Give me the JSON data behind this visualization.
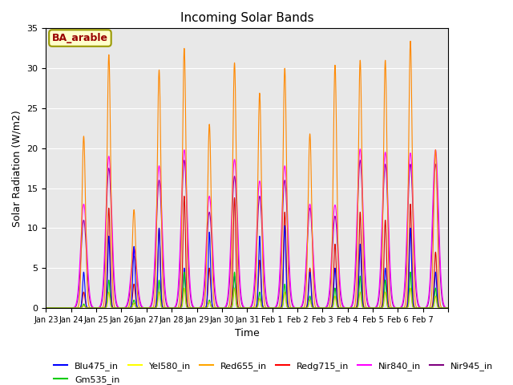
{
  "title": "Incoming Solar Bands",
  "xlabel": "Time",
  "ylabel": "Solar Radiation (W/m2)",
  "annotation": "BA_arable",
  "ylim": [
    0,
    35
  ],
  "bg_color": "#e8e8e8",
  "annotation_bg": "#ffffcc",
  "annotation_fg": "#990000",
  "annotation_edge": "#999900",
  "n_days": 16,
  "tick_labels": [
    "Jan 23",
    "Jan 24",
    "Jan 25",
    "Jan 26",
    "Jan 27",
    "Jan 28",
    "Jan 29",
    "Jan 30",
    "Jan 31",
    "Feb 1",
    "Feb 2",
    "Feb 3",
    "Feb 4",
    "Feb 5",
    "Feb 6",
    "Feb 7"
  ],
  "colors": {
    "Blu475_in": "#0000FF",
    "Gm535_in": "#00CC00",
    "Yel580_in": "#CCCC00",
    "Red655_in": "#FF8800",
    "Redg715_in": "#DD0000",
    "Nir840_in": "#FF00FF",
    "Nir945_in": "#9900AA"
  },
  "orange_peaks": [
    0.0,
    21.5,
    31.7,
    12.3,
    29.8,
    32.5,
    23.0,
    30.7,
    26.9,
    30.0,
    21.8,
    30.4,
    31.0,
    31.0,
    33.4,
    19.8
  ],
  "magenta_peaks": [
    0.0,
    13.0,
    19.0,
    7.5,
    17.8,
    19.8,
    14.0,
    18.6,
    15.9,
    17.8,
    13.0,
    12.9,
    19.9,
    19.5,
    19.4,
    19.8
  ],
  "purple_peaks": [
    0.0,
    11.0,
    17.5,
    6.5,
    16.0,
    18.5,
    12.0,
    16.5,
    14.0,
    16.0,
    12.5,
    11.5,
    18.5,
    18.0,
    18.0,
    18.0
  ],
  "blue_peaks": [
    0.0,
    4.5,
    9.0,
    7.7,
    10.0,
    5.0,
    9.5,
    4.0,
    9.0,
    10.3,
    4.5,
    5.0,
    8.0,
    5.0,
    10.0,
    4.5
  ],
  "red_peaks": [
    0.0,
    2.0,
    12.5,
    3.0,
    10.0,
    14.0,
    5.0,
    13.8,
    6.0,
    12.0,
    5.0,
    8.0,
    12.0,
    11.0,
    13.0,
    7.0
  ],
  "green_peaks": [
    0.0,
    0.5,
    3.5,
    1.0,
    3.5,
    4.5,
    1.0,
    4.5,
    2.0,
    3.0,
    1.5,
    2.5,
    4.0,
    3.5,
    4.5,
    2.5
  ],
  "yellow_peaks": [
    0.0,
    0.3,
    2.0,
    0.6,
    2.0,
    2.5,
    0.8,
    2.5,
    1.2,
    2.0,
    1.0,
    1.5,
    2.0,
    2.0,
    2.5,
    1.5
  ],
  "legend_order": [
    "Blu475_in",
    "Gm535_in",
    "Yel580_in",
    "Red655_in",
    "Redg715_in",
    "Nir840_in",
    "Nir945_in"
  ],
  "legend_colors_list": [
    "blue",
    "#00CC00",
    "yellow",
    "orange",
    "red",
    "magenta",
    "purple"
  ]
}
